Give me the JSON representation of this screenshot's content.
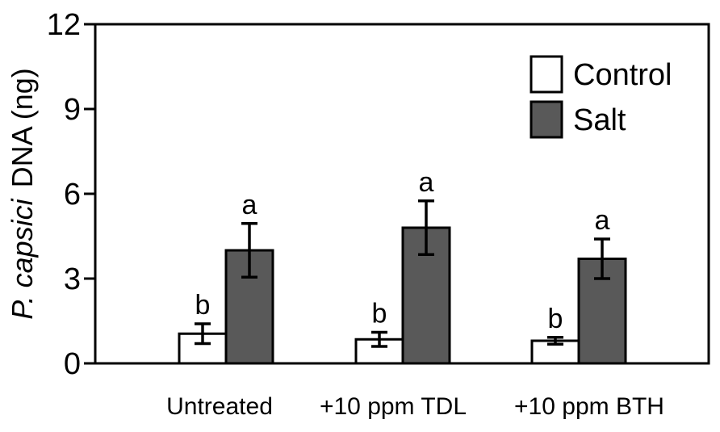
{
  "chart_data": {
    "type": "bar",
    "title": "",
    "xlabel": "",
    "ylabel_italic": "P. capsici",
    "ylabel_rest": "DNA (ng)",
    "ylim": [
      0,
      12
    ],
    "yticks": [
      0,
      3,
      6,
      9,
      12
    ],
    "categories": [
      "Untreated",
      "+10 ppm TDL",
      "+10 ppm BTH"
    ],
    "series": [
      {
        "name": "Control",
        "color": "#ffffff",
        "values": [
          1.05,
          0.85,
          0.8
        ],
        "errors": [
          0.35,
          0.25,
          0.12
        ],
        "labels": [
          "b",
          "b",
          "b"
        ]
      },
      {
        "name": "Salt",
        "color": "#595959",
        "values": [
          4.0,
          4.8,
          3.7
        ],
        "errors": [
          0.95,
          0.95,
          0.7
        ],
        "labels": [
          "a",
          "a",
          "a"
        ]
      }
    ],
    "legend": "top-right",
    "grid": false
  }
}
